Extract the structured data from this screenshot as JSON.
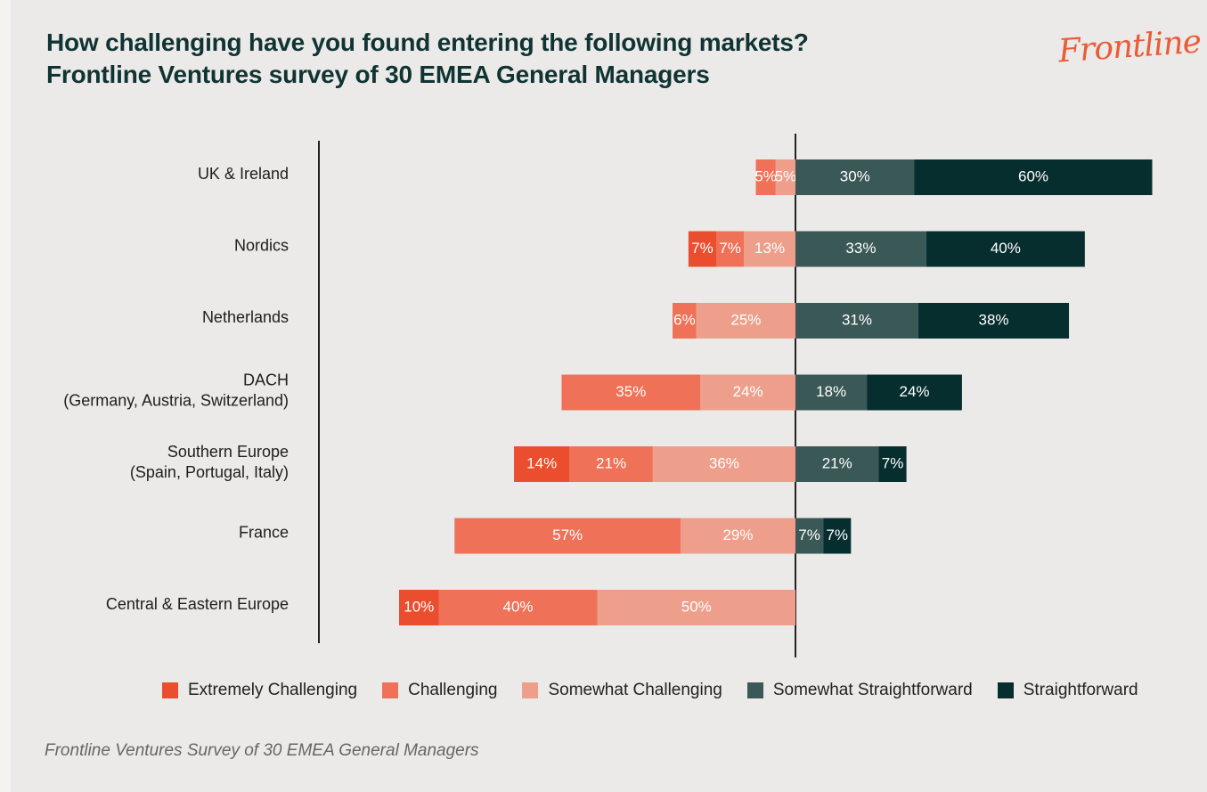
{
  "title_line1": "How challenging have you found entering the following markets?",
  "title_line2": "Frontline Ventures survey of 30 EMEA General Managers",
  "logo_text": "Frontline",
  "source_note": "Frontline Ventures Survey of 30 EMEA General Managers",
  "colors": {
    "extremely_challenging": "#ea4e2e",
    "challenging": "#ee7158",
    "somewhat_challenging": "#ee9f8c",
    "somewhat_straightforward": "#3a5856",
    "straightforward": "#072e2f"
  },
  "chart_data": {
    "type": "bar",
    "orientation": "horizontal",
    "stacking": "diverging",
    "categories": [
      [
        "UK & Ireland"
      ],
      [
        "Nordics"
      ],
      [
        "Netherlands"
      ],
      [
        "DACH",
        "(Germany, Austria, Switzerland)"
      ],
      [
        "Southern Europe",
        "(Spain, Portugal, Italy)"
      ],
      [
        "France"
      ],
      [
        "Central & Eastern Europe"
      ]
    ],
    "unit": "%",
    "series": [
      {
        "name": "Extremely Challenging",
        "side": "left",
        "color_key": "extremely_challenging",
        "values": [
          0,
          7,
          0,
          0,
          14,
          0,
          10
        ]
      },
      {
        "name": "Challenging",
        "side": "left",
        "color_key": "challenging",
        "values": [
          5,
          7,
          6,
          35,
          21,
          57,
          40
        ]
      },
      {
        "name": "Somewhat Challenging",
        "side": "left",
        "color_key": "somewhat_challenging",
        "values": [
          5,
          13,
          25,
          24,
          36,
          29,
          50
        ]
      },
      {
        "name": "Somewhat Straightforward",
        "side": "right",
        "color_key": "somewhat_straightforward",
        "values": [
          30,
          33,
          31,
          18,
          21,
          7,
          0
        ]
      },
      {
        "name": "Straightforward",
        "side": "right",
        "color_key": "straightforward",
        "values": [
          60,
          40,
          38,
          24,
          7,
          7,
          0
        ]
      }
    ],
    "legend_position": "bottom",
    "grid": false
  }
}
